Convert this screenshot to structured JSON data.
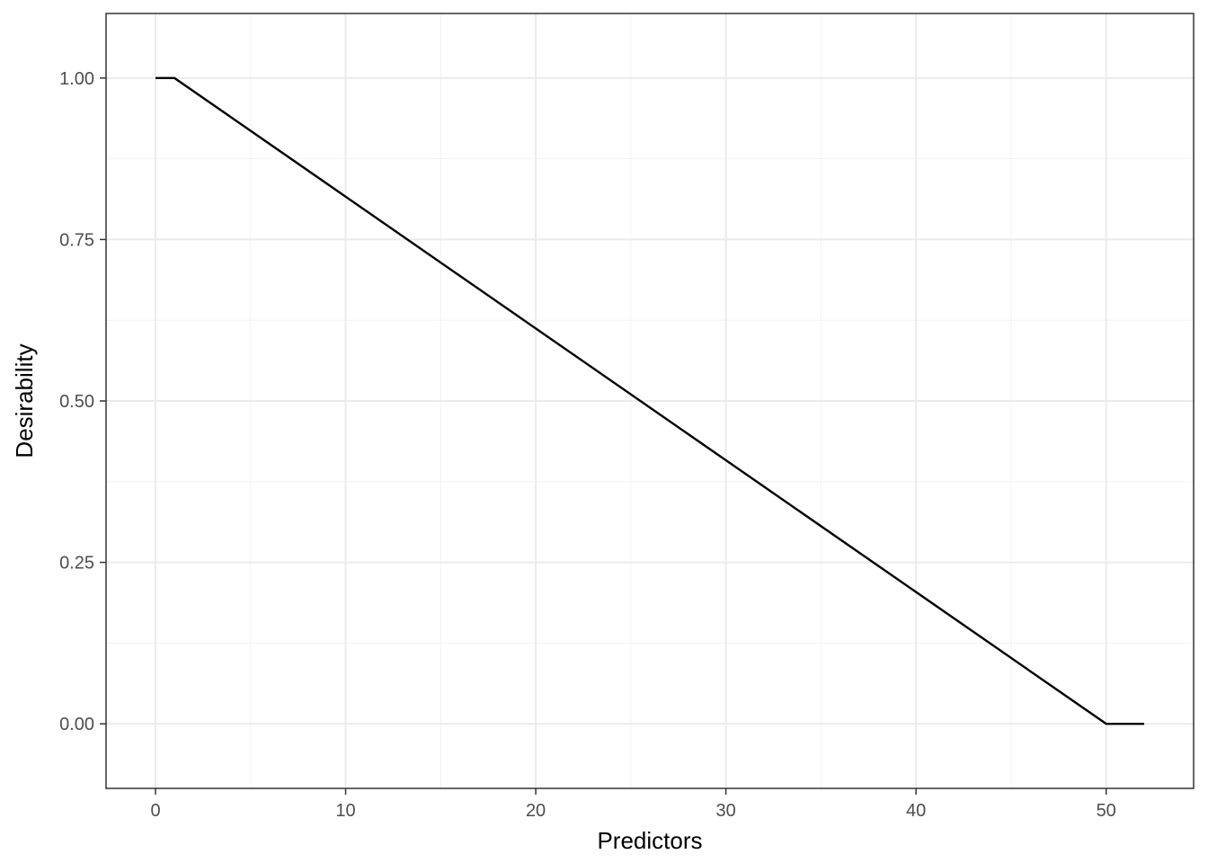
{
  "chart_data": {
    "type": "line",
    "title": "",
    "xlabel": "Predictors",
    "ylabel": "Desirability",
    "xlim": [
      -2.6,
      54.6
    ],
    "ylim": [
      -0.1,
      1.1
    ],
    "x_ticks": [
      0,
      10,
      20,
      30,
      40,
      50
    ],
    "x_tick_labels": [
      "0",
      "10",
      "20",
      "30",
      "40",
      "50"
    ],
    "x_minor_ticks": [
      5,
      15,
      25,
      35,
      45
    ],
    "y_ticks": [
      0,
      0.25,
      0.5,
      0.75,
      1
    ],
    "y_tick_labels": [
      "0.00",
      "0.25",
      "0.50",
      "0.75",
      "1.00"
    ],
    "y_minor_ticks": [
      0.125,
      0.375,
      0.625,
      0.875
    ],
    "grid": true,
    "series": [
      {
        "x": [
          0,
          1,
          50,
          52
        ],
        "y": [
          1.0,
          1.0,
          0.0,
          0.0
        ],
        "color": "#000000"
      }
    ]
  }
}
